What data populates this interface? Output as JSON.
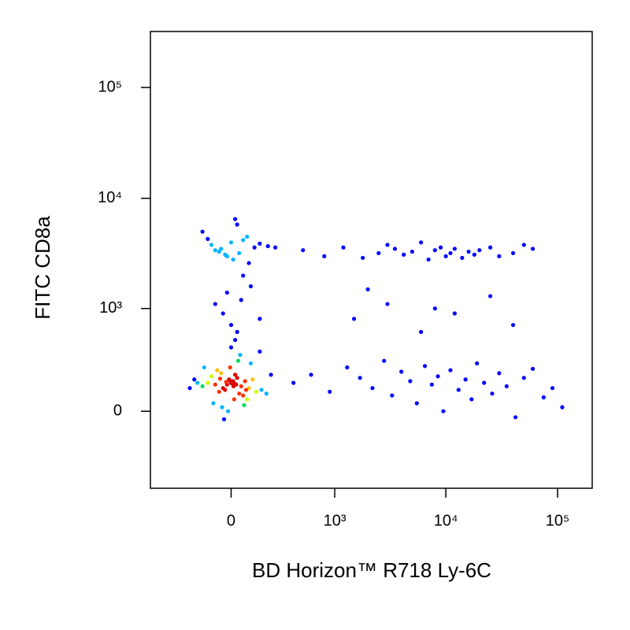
{
  "chart_data": {
    "type": "scatter",
    "x_label": "BD Horizon™ R718 Ly-6C",
    "y_label": "FITC CD8a",
    "xscale": "biexponential",
    "yscale": "biexponential",
    "xlim": [
      -610,
      204000
    ],
    "ylim": [
      -570,
      320000
    ],
    "xticks": [
      0,
      {
        "value": 1000,
        "label": "10³"
      },
      {
        "value": 10000,
        "label": "10⁴"
      },
      {
        "value": 100000,
        "label": "10⁵"
      }
    ],
    "yticks": [
      0,
      {
        "value": 1000,
        "label": "10³"
      },
      {
        "value": 10000,
        "label": "10⁴"
      },
      {
        "value": 100000,
        "label": "10⁵"
      }
    ],
    "colormap": [
      "#0000ff",
      "#00b4ff",
      "#00e060",
      "#c8ff00",
      "#ffc000",
      "#ff3000",
      "#e00000"
    ],
    "x": [
      -20,
      10,
      -40,
      30,
      0,
      -60,
      50,
      -10,
      20,
      -30,
      40,
      -80,
      70,
      -5,
      15,
      -100,
      90,
      -50,
      60,
      -120,
      110,
      -150,
      130,
      25,
      -25,
      5,
      -70,
      80,
      -90,
      100,
      -180,
      160,
      -200,
      190,
      35,
      -45,
      45,
      -15,
      12,
      -8,
      220,
      -230,
      150,
      -140,
      65,
      -35,
      0,
      18,
      -55,
      75,
      -50,
      0,
      40,
      -100,
      80,
      -20,
      120,
      -150,
      10,
      60,
      -80,
      150,
      30,
      -30,
      200,
      -120,
      90,
      -60,
      20,
      250,
      0,
      50,
      -40,
      100,
      20,
      -80,
      150,
      60,
      -20,
      30,
      500,
      800,
      1200,
      1800,
      2500,
      3000,
      3500,
      4200,
      5000,
      6000,
      7000,
      8000,
      9000,
      10000,
      11000,
      12000,
      14000,
      16000,
      18000,
      20000,
      25000,
      30000,
      40000,
      50000,
      60000,
      400,
      600,
      900,
      1300,
      1700,
      2200,
      2800,
      3300,
      4000,
      4800,
      5500,
      6500,
      7500,
      8500,
      9500,
      11000,
      13000,
      15000,
      17000,
      19000,
      22000,
      26000,
      30000,
      35000,
      42000,
      50000,
      60000,
      75000,
      90000,
      110000,
      1500,
      3000,
      6000,
      12000,
      25000,
      40000,
      2000,
      8000
    ],
    "values": [
      140,
      160,
      120,
      180,
      150,
      100,
      130,
      170,
      200,
      110,
      90,
      140,
      160,
      250,
      60,
      190,
      120,
      210,
      80,
      150,
      170,
      130,
      100,
      140,
      155,
      145,
      230,
      60,
      40,
      280,
      150,
      110,
      170,
      90,
      300,
      20,
      350,
      0,
      130,
      165,
      200,
      120,
      380,
      250,
      30,
      -40,
      420,
      145,
      175,
      110,
      3500,
      4000,
      3200,
      3800,
      4500,
      3000,
      3600,
      5000,
      2800,
      4200,
      3400,
      3900,
      5800,
      3100,
      3700,
      4300,
      2600,
      3300,
      6500,
      3600,
      700,
      1200,
      900,
      1600,
      500,
      1100,
      800,
      2000,
      1400,
      600,
      3400,
      3000,
      3600,
      2900,
      3200,
      3800,
      3500,
      3100,
      3300,
      4000,
      2800,
      3400,
      3600,
      3000,
      3200,
      3500,
      2900,
      3300,
      3100,
      3400,
      3600,
      3000,
      3200,
      3800,
      3500,
      150,
      200,
      100,
      250,
      180,
      120,
      300,
      80,
      220,
      160,
      40,
      260,
      140,
      190,
      0,
      230,
      110,
      170,
      60,
      280,
      150,
      90,
      210,
      130,
      -30,
      180,
      240,
      70,
      120,
      20,
      800,
      1100,
      600,
      900,
      1300,
      700,
      1500,
      1000
    ]
  }
}
